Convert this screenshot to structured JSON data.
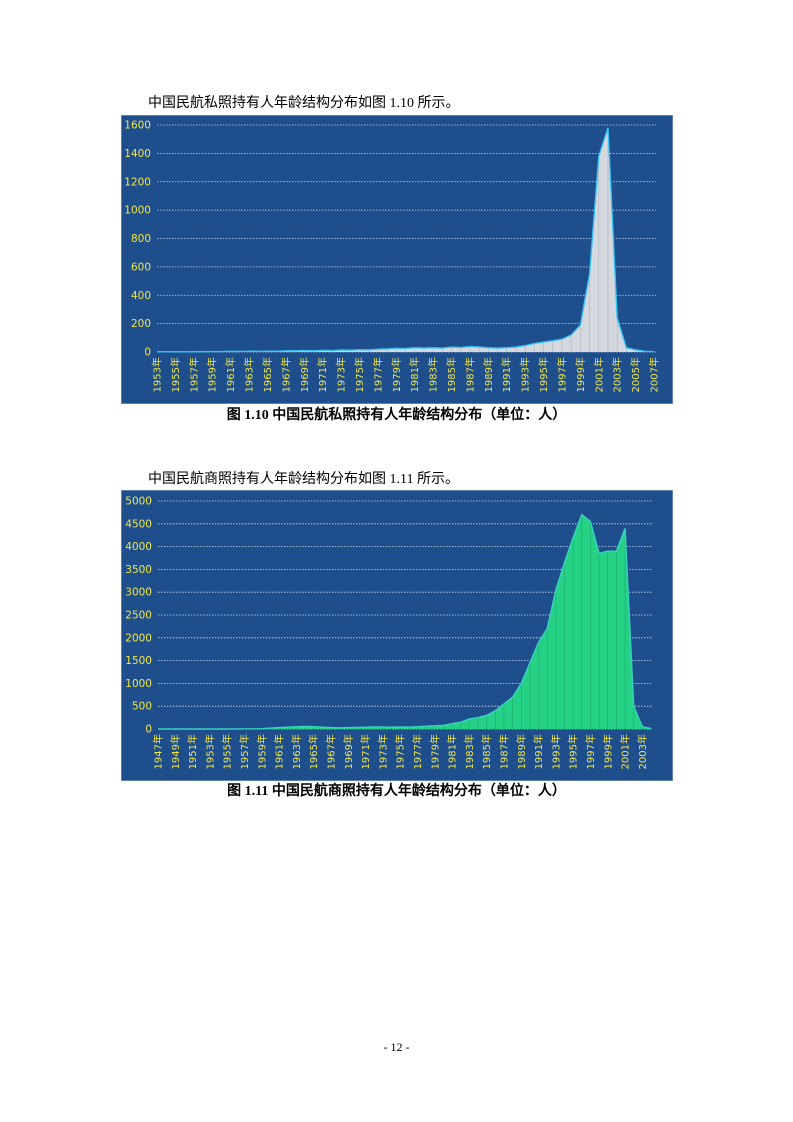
{
  "paragraph1": "中国民航私照持有人年龄结构分布如图 1.10 所示。",
  "caption1": "图 1.10  中国民航私照持有人年龄结构分布（单位：人）",
  "paragraph2": "中国民航商照持有人年龄结构分布如图 1.11 所示。",
  "caption2": "图 1.11  中国民航商照持有人年龄结构分布（单位：人）",
  "page_number": "- 12 -",
  "colors": {
    "background": "#1f4e8c",
    "grid": "#cfdcf0",
    "tick_label": "#f0e64a",
    "chart1_fill": "#d5d9df",
    "chart1_line": "#35c2f2",
    "chart2_fill": "#25d184",
    "chart2_line": "#37d2c0"
  },
  "chart_data": [
    {
      "type": "area",
      "x": [
        "1953年",
        "1954年",
        "1955年",
        "1956年",
        "1957年",
        "1958年",
        "1959年",
        "1960年",
        "1961年",
        "1962年",
        "1963年",
        "1964年",
        "1965年",
        "1966年",
        "1967年",
        "1968年",
        "1969年",
        "1970年",
        "1971年",
        "1972年",
        "1973年",
        "1974年",
        "1975年",
        "1976年",
        "1977年",
        "1978年",
        "1979年",
        "1980年",
        "1981年",
        "1982年",
        "1983年",
        "1984年",
        "1985年",
        "1986年",
        "1987年",
        "1988年",
        "1989年",
        "1990年",
        "1991年",
        "1992年",
        "1993年",
        "1994年",
        "1995年",
        "1996年",
        "1997年",
        "1998年",
        "1999年",
        "2000年",
        "2001年",
        "2002年",
        "2003年",
        "2004年",
        "2005年",
        "2006年",
        "2007年"
      ],
      "values": [
        2,
        1,
        2,
        1,
        2,
        2,
        3,
        3,
        5,
        4,
        6,
        5,
        6,
        6,
        8,
        8,
        10,
        8,
        12,
        10,
        14,
        13,
        16,
        15,
        20,
        22,
        26,
        25,
        30,
        28,
        30,
        28,
        35,
        32,
        38,
        36,
        30,
        28,
        30,
        35,
        45,
        60,
        70,
        80,
        90,
        120,
        190,
        550,
        1380,
        1580,
        240,
        30,
        15,
        5,
        2
      ],
      "x_ticks": [
        "1953年",
        "1955年",
        "1957年",
        "1959年",
        "1961年",
        "1963年",
        "1965年",
        "1967年",
        "1969年",
        "1971年",
        "1973年",
        "1975年",
        "1977年",
        "1979年",
        "1981年",
        "1983年",
        "1985年",
        "1987年",
        "1989年",
        "1991年",
        "1993年",
        "1995年",
        "1997年",
        "1999年",
        "2001年",
        "2003年",
        "2005年",
        "2007年"
      ],
      "ylim": [
        0,
        1600
      ],
      "y_ticks": [
        0,
        200,
        400,
        600,
        800,
        1000,
        1200,
        1400,
        1600
      ],
      "grid": true
    },
    {
      "type": "area",
      "x": [
        "1947年",
        "1948年",
        "1949年",
        "1950年",
        "1951年",
        "1952年",
        "1953年",
        "1954年",
        "1955年",
        "1956年",
        "1957年",
        "1958年",
        "1959年",
        "1960年",
        "1961年",
        "1962年",
        "1963年",
        "1964年",
        "1965年",
        "1966年",
        "1967年",
        "1968年",
        "1969年",
        "1970年",
        "1971年",
        "1972年",
        "1973年",
        "1974年",
        "1975年",
        "1976年",
        "1977年",
        "1978年",
        "1979年",
        "1980年",
        "1981年",
        "1982年",
        "1983年",
        "1984年",
        "1985年",
        "1986年",
        "1987年",
        "1988年",
        "1989年",
        "1990年",
        "1991年",
        "1992年",
        "1993年",
        "1994年",
        "1995年",
        "1996年",
        "1997年",
        "1998年",
        "1999年",
        "2000年",
        "2001年",
        "2002年",
        "2003年",
        "2004年"
      ],
      "values": [
        0,
        0,
        0,
        0,
        0,
        0,
        0,
        0,
        0,
        0,
        1,
        3,
        8,
        20,
        30,
        40,
        50,
        55,
        50,
        40,
        30,
        25,
        30,
        35,
        40,
        45,
        45,
        40,
        45,
        40,
        50,
        60,
        70,
        80,
        120,
        150,
        220,
        250,
        300,
        400,
        550,
        700,
        1000,
        1450,
        1900,
        2200,
        3050,
        3650,
        4200,
        4700,
        4550,
        3850,
        3900,
        3900,
        4400,
        500,
        50,
        10
      ],
      "x_ticks": [
        "1947年",
        "1949年",
        "1951年",
        "1953年",
        "1955年",
        "1957年",
        "1959年",
        "1961年",
        "1963年",
        "1965年",
        "1967年",
        "1969年",
        "1971年",
        "1973年",
        "1975年",
        "1977年",
        "1979年",
        "1981年",
        "1983年",
        "1985年",
        "1987年",
        "1989年",
        "1991年",
        "1993年",
        "1995年",
        "1997年",
        "1999年",
        "2001年",
        "2003年"
      ],
      "ylim": [
        0,
        5000
      ],
      "y_ticks": [
        0,
        500,
        1000,
        1500,
        2000,
        2500,
        3000,
        3500,
        4000,
        4500,
        5000
      ],
      "grid": true
    }
  ]
}
